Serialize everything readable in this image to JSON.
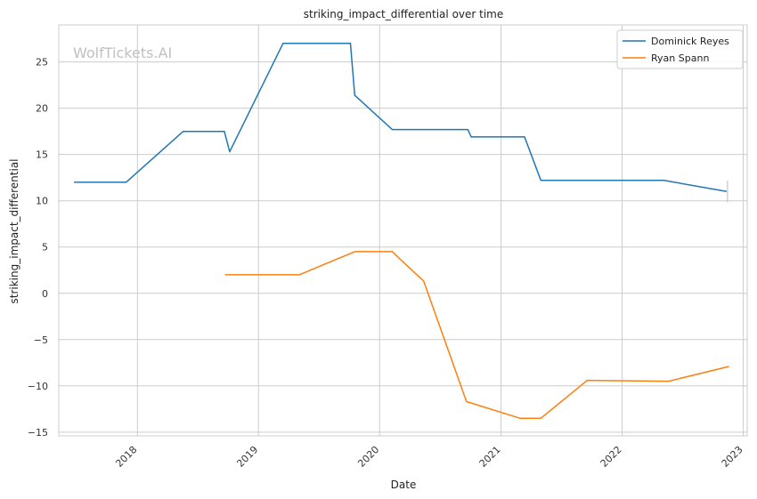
{
  "watermark": "WolfTickets.AI",
  "chart_data": {
    "type": "line",
    "title": "striking_impact_differential over time",
    "xlabel": "Date",
    "ylabel": "striking_impact_differential",
    "x_ticks": [
      "2018",
      "2019",
      "2020",
      "2021",
      "2022",
      "2023"
    ],
    "y_ticks": [
      "25",
      "20",
      "15",
      "10",
      "5",
      "0",
      "−5",
      "−10",
      "−15"
    ],
    "xlim": [
      "2017-05-09",
      "2023-01-13"
    ],
    "ylim": [
      -15.4,
      29
    ],
    "grid": true,
    "legend_position": "top-right",
    "series": [
      {
        "name": "Dominick Reyes",
        "color": "#1f77b4",
        "points": [
          [
            "2017-06-24",
            12.0
          ],
          [
            "2017-11-28",
            12.0
          ],
          [
            "2018-05-19",
            17.5
          ],
          [
            "2018-09-20",
            17.5
          ],
          [
            "2018-10-06",
            15.3
          ],
          [
            "2019-03-16",
            27.0
          ],
          [
            "2019-10-05",
            27.0
          ],
          [
            "2019-10-18",
            21.4
          ],
          [
            "2020-02-08",
            17.7
          ],
          [
            "2020-09-23",
            17.7
          ],
          [
            "2020-10-03",
            16.9
          ],
          [
            "2021-03-13",
            16.9
          ],
          [
            "2021-05-01",
            12.2
          ],
          [
            "2022-05-07",
            12.2
          ],
          [
            "2022-11-12",
            11.0
          ]
        ]
      },
      {
        "name": "Ryan Spann",
        "color": "#ff7f0e",
        "points": [
          [
            "2018-09-22",
            2.0
          ],
          [
            "2019-05-04",
            2.0
          ],
          [
            "2019-10-18",
            4.5
          ],
          [
            "2020-02-08",
            4.5
          ],
          [
            "2020-05-13",
            1.3
          ],
          [
            "2020-09-19",
            -11.7
          ],
          [
            "2021-02-27",
            -13.5
          ],
          [
            "2021-05-01",
            -13.5
          ],
          [
            "2021-09-18",
            -9.4
          ],
          [
            "2022-05-21",
            -9.5
          ],
          [
            "2022-11-19",
            -7.9
          ]
        ]
      }
    ]
  }
}
